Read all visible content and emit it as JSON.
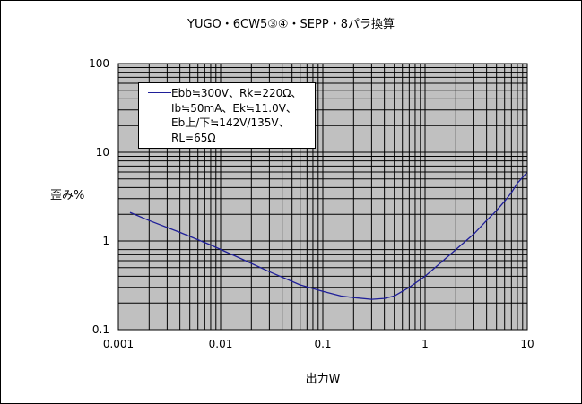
{
  "chart_data": {
    "type": "line",
    "title": "YUGO・6CW5③④・SEPP・8パラ換算",
    "xlabel": "出力W",
    "ylabel": "歪み%",
    "xscale": "log",
    "yscale": "log",
    "xlim": [
      0.001,
      10
    ],
    "ylim": [
      0.1,
      100
    ],
    "grid": true,
    "legend_position": "top-left",
    "x_tick_labels": [
      "0.001",
      "0.01",
      "0.1",
      "1",
      "10"
    ],
    "y_tick_labels": [
      "100",
      "10",
      "1",
      "0.1"
    ],
    "series": [
      {
        "name": "Ebb≒300V、Rk=220Ω、Ib≒50mA、Ek≒11.0V、Eb上/下≒142V/135V、RL=65Ω",
        "legend_lines": [
          "Ebb≒300V、Rk=220Ω、",
          "Ib≒50mA、Ek≒11.0V、",
          "Eb上/下≒142V/135V、",
          "RL=65Ω"
        ],
        "color": "#1f1f99",
        "x": [
          0.0013,
          0.002,
          0.004,
          0.008,
          0.015,
          0.03,
          0.06,
          0.1,
          0.15,
          0.2,
          0.3,
          0.4,
          0.5,
          0.7,
          1.0,
          1.5,
          2.0,
          3.0,
          4.0,
          5.0,
          6.0,
          7.0,
          8.0,
          9.0,
          10.0
        ],
        "y": [
          2.1,
          1.7,
          1.25,
          0.9,
          0.65,
          0.45,
          0.32,
          0.27,
          0.24,
          0.23,
          0.22,
          0.225,
          0.24,
          0.3,
          0.4,
          0.6,
          0.8,
          1.2,
          1.7,
          2.2,
          2.8,
          3.5,
          4.5,
          5.2,
          6.0
        ]
      }
    ]
  },
  "colors": {
    "plot_background": "#c0c0c0",
    "grid": "#000000",
    "series": "#1f1f99"
  }
}
